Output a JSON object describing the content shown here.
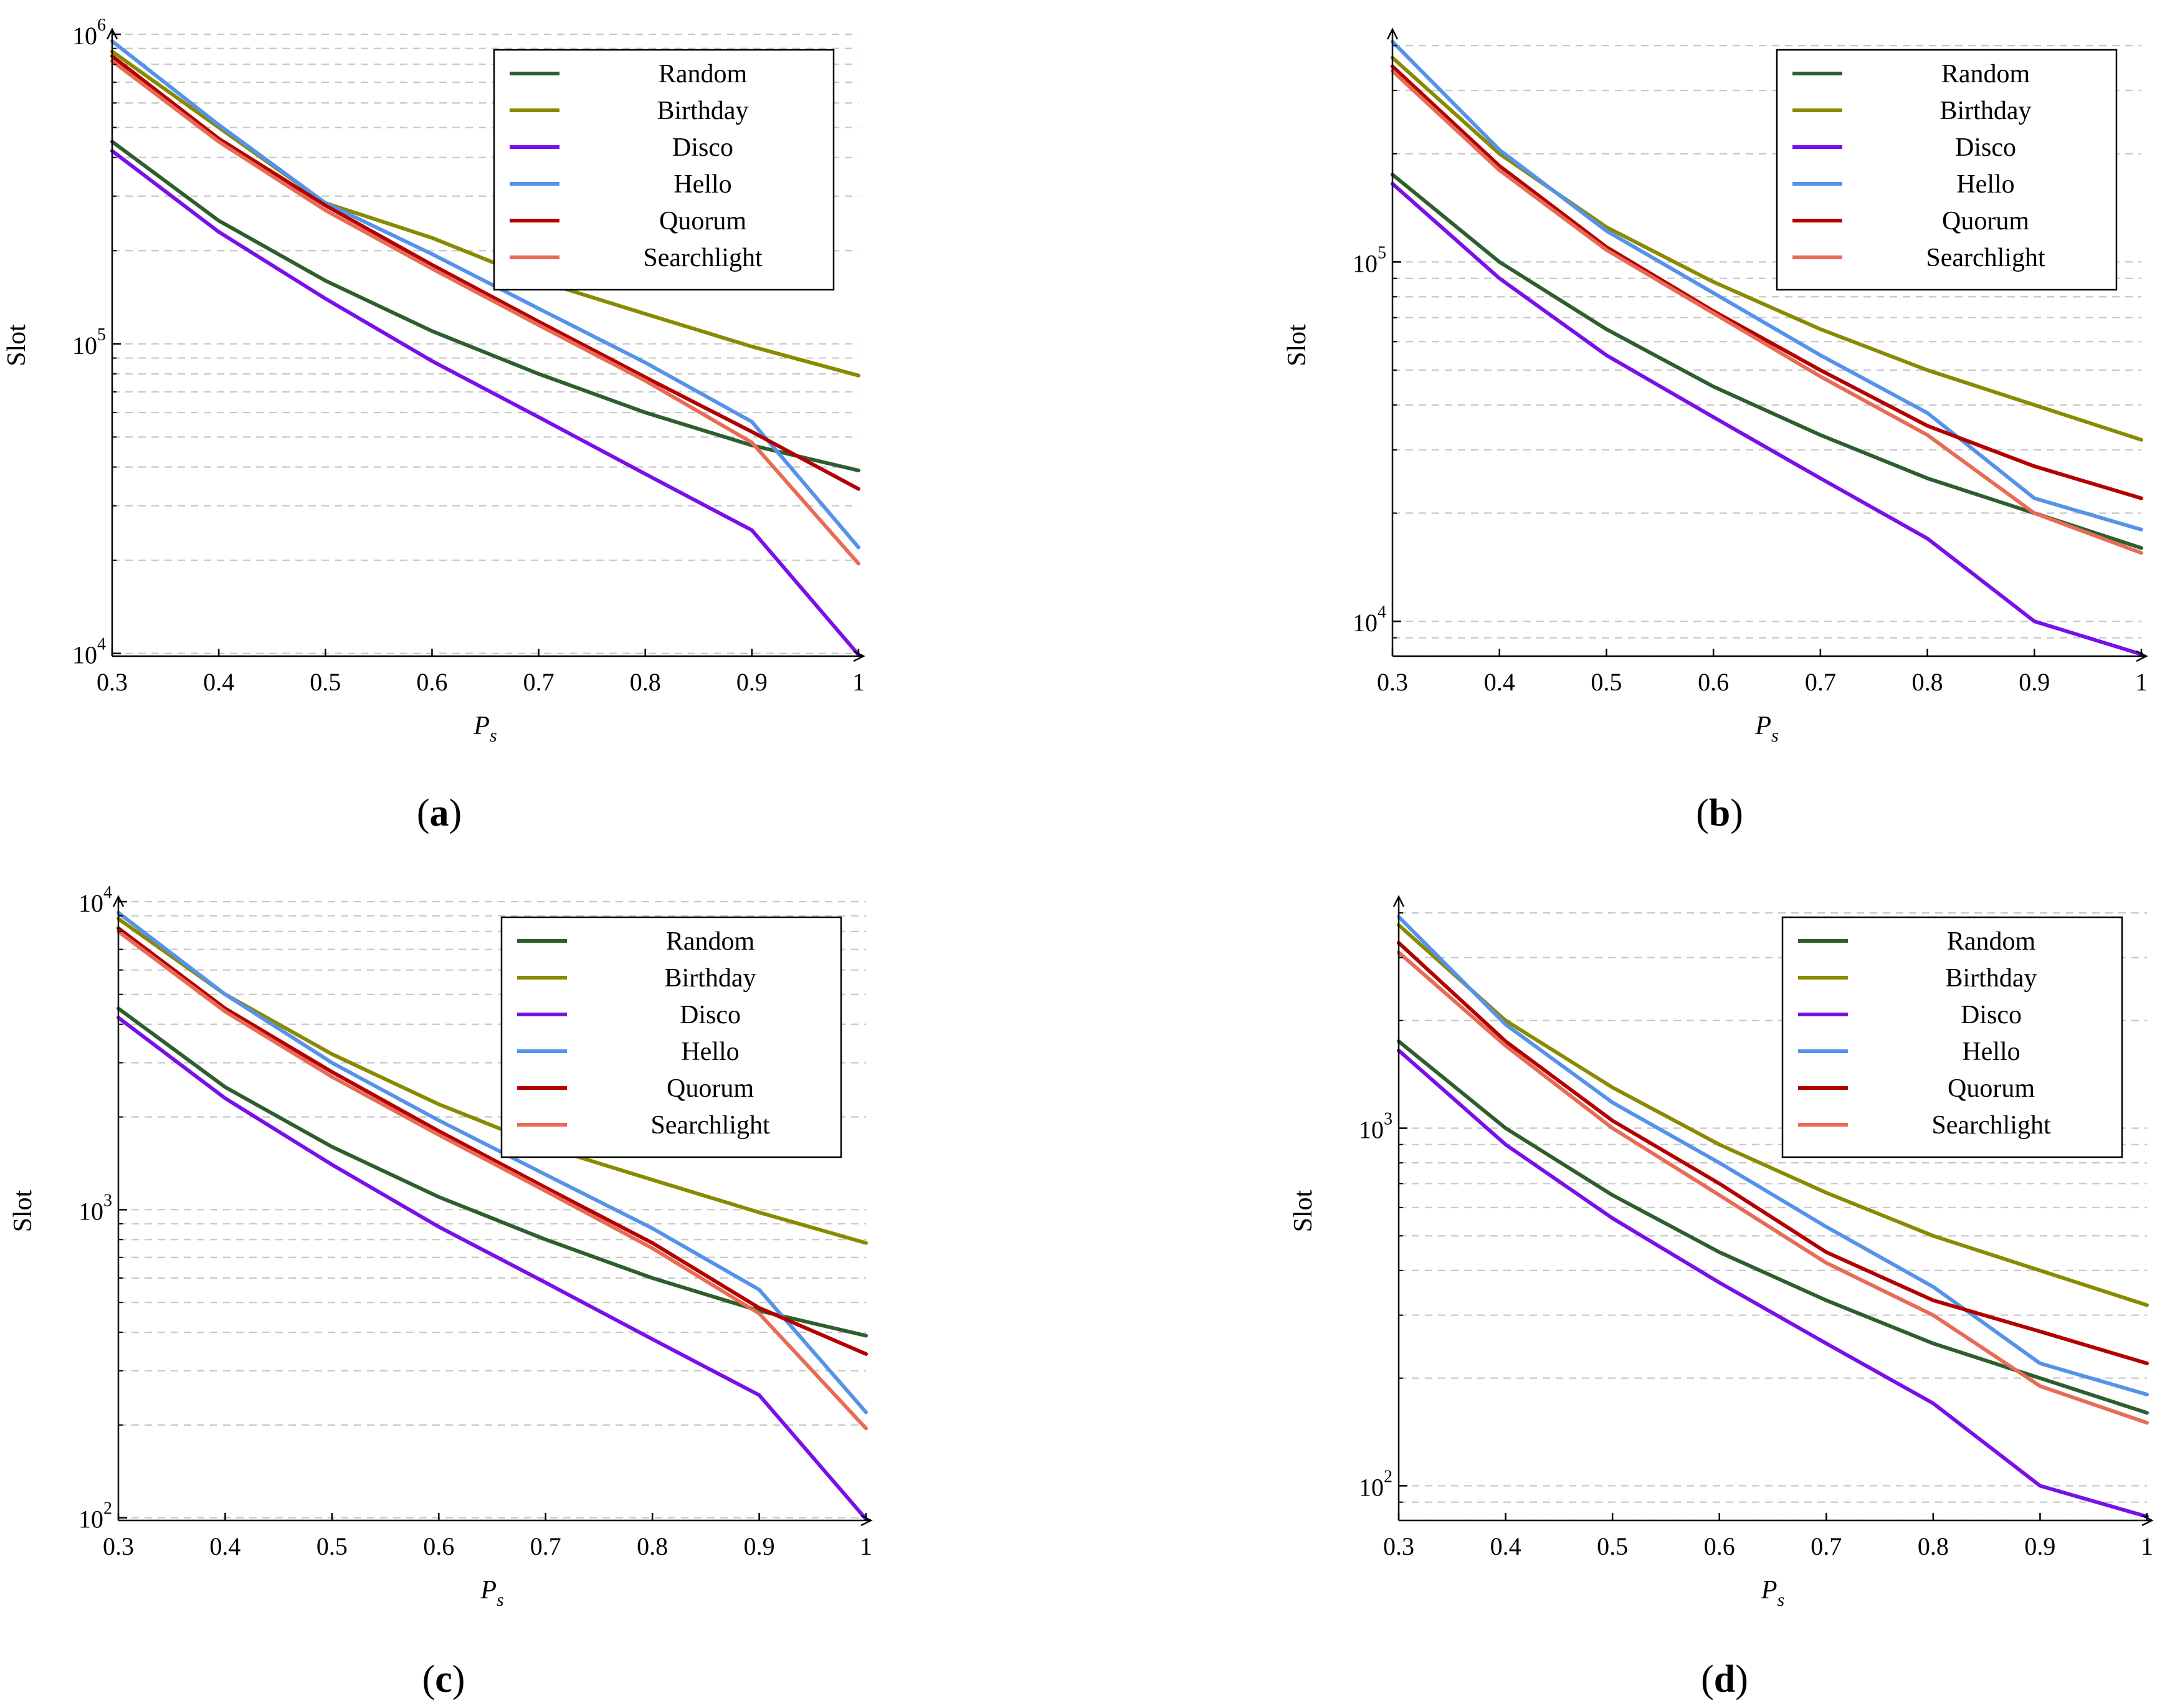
{
  "figure": {
    "panels": [
      {
        "caption": "(a)",
        "caption_letter": "a"
      },
      {
        "caption": "(b)",
        "caption_letter": "b"
      },
      {
        "caption": "(c)",
        "caption_letter": "c"
      },
      {
        "caption": "(d)",
        "caption_letter": "d"
      }
    ]
  },
  "colors": {
    "Random": "#2e5e2e",
    "Birthday": "#8a8a00",
    "Disco": "#7a10e8",
    "Hello": "#5592ea",
    "Quorum": "#b30000",
    "Searchlight": "#e86b55",
    "grid": "#c8c8c8",
    "axis": "#000000"
  },
  "chart_data": [
    {
      "type": "line",
      "panel": "a",
      "xlabel": "P",
      "xlabel_sub": "s",
      "ylabel": "Slot",
      "yscale": "log",
      "xlim": [
        0.3,
        1.0
      ],
      "ylim": [
        9800,
        1000000
      ],
      "x": [
        0.3,
        0.4,
        0.5,
        0.6,
        0.7,
        0.8,
        0.9,
        1.0
      ],
      "xtick_labels": [
        "0.3",
        "0.4",
        "0.5",
        "0.6",
        "0.7",
        "0.8",
        "0.9",
        "1"
      ],
      "ytick_major": [
        {
          "base": "10",
          "exp": "4",
          "value": 10000
        },
        {
          "base": "10",
          "exp": "5",
          "value": 100000
        },
        {
          "base": "10",
          "exp": "6",
          "value": 1000000
        }
      ],
      "legend_position": "top-right",
      "series": [
        {
          "name": "Random",
          "values": [
            450000,
            250000,
            160000,
            110000,
            80000,
            60000,
            47000,
            39000
          ]
        },
        {
          "name": "Birthday",
          "values": [
            880000,
            500000,
            285000,
            220000,
            160000,
            125000,
            98000,
            79000
          ]
        },
        {
          "name": "Disco",
          "values": [
            420000,
            230000,
            140000,
            88000,
            58000,
            38000,
            25000,
            9900
          ]
        },
        {
          "name": "Hello",
          "values": [
            950000,
            510000,
            285000,
            195000,
            130000,
            87000,
            56000,
            22000
          ]
        },
        {
          "name": "Quorum",
          "values": [
            850000,
            460000,
            280000,
            180000,
            118000,
            78000,
            52000,
            34000
          ]
        },
        {
          "name": "Searchlight",
          "values": [
            820000,
            450000,
            270000,
            175000,
            115000,
            76000,
            48000,
            19500
          ]
        }
      ]
    },
    {
      "type": "line",
      "panel": "b",
      "xlabel": "P",
      "xlabel_sub": "s",
      "ylabel": "Slot",
      "yscale": "log",
      "xlim": [
        0.3,
        1.0
      ],
      "ylim": [
        8000,
        430000
      ],
      "x": [
        0.3,
        0.4,
        0.5,
        0.6,
        0.7,
        0.8,
        0.9,
        1.0
      ],
      "xtick_labels": [
        "0.3",
        "0.4",
        "0.5",
        "0.6",
        "0.7",
        "0.8",
        "0.9",
        "1"
      ],
      "ytick_major": [
        {
          "base": "10",
          "exp": "4",
          "value": 10000
        },
        {
          "base": "10",
          "exp": "5",
          "value": 100000
        }
      ],
      "legend_position": "top-right",
      "series": [
        {
          "name": "Random",
          "values": [
            175000,
            100000,
            65000,
            45000,
            33000,
            25000,
            20000,
            16000
          ]
        },
        {
          "name": "Birthday",
          "values": [
            370000,
            200000,
            125000,
            88000,
            65000,
            50000,
            40000,
            32000
          ]
        },
        {
          "name": "Disco",
          "values": [
            165000,
            90000,
            55000,
            37000,
            25000,
            17000,
            10000,
            8100
          ]
        },
        {
          "name": "Hello",
          "values": [
            410000,
            205000,
            122000,
            82000,
            55000,
            38000,
            22000,
            18000
          ]
        },
        {
          "name": "Quorum",
          "values": [
            350000,
            185000,
            110000,
            73000,
            50000,
            35000,
            27000,
            22000
          ]
        },
        {
          "name": "Searchlight",
          "values": [
            340000,
            180000,
            108000,
            72000,
            48000,
            33000,
            20000,
            15500
          ]
        }
      ]
    },
    {
      "type": "line",
      "panel": "c",
      "xlabel": "P",
      "xlabel_sub": "s",
      "ylabel": "Slot",
      "yscale": "log",
      "xlim": [
        0.3,
        1.0
      ],
      "ylim": [
        98,
        10000
      ],
      "x": [
        0.3,
        0.4,
        0.5,
        0.6,
        0.7,
        0.8,
        0.9,
        1.0
      ],
      "xtick_labels": [
        "0.3",
        "0.4",
        "0.5",
        "0.6",
        "0.7",
        "0.8",
        "0.9",
        "1"
      ],
      "ytick_major": [
        {
          "base": "10",
          "exp": "2",
          "value": 100
        },
        {
          "base": "10",
          "exp": "3",
          "value": 1000
        },
        {
          "base": "10",
          "exp": "4",
          "value": 10000
        }
      ],
      "legend_position": "top-right",
      "series": [
        {
          "name": "Random",
          "values": [
            4500,
            2500,
            1600,
            1100,
            800,
            600,
            470,
            390
          ]
        },
        {
          "name": "Birthday",
          "values": [
            8800,
            5000,
            3200,
            2200,
            1600,
            1250,
            980,
            780
          ]
        },
        {
          "name": "Disco",
          "values": [
            4200,
            2300,
            1400,
            880,
            580,
            380,
            250,
            99
          ]
        },
        {
          "name": "Hello",
          "values": [
            9200,
            5000,
            3000,
            1950,
            1300,
            870,
            550,
            220
          ]
        },
        {
          "name": "Quorum",
          "values": [
            8200,
            4500,
            2800,
            1800,
            1180,
            780,
            480,
            340
          ]
        },
        {
          "name": "Searchlight",
          "values": [
            8000,
            4400,
            2700,
            1750,
            1150,
            750,
            460,
            195
          ]
        }
      ]
    },
    {
      "type": "line",
      "panel": "d",
      "xlabel": "P",
      "xlabel_sub": "s",
      "ylabel": "Slot",
      "yscale": "log",
      "xlim": [
        0.3,
        1.0
      ],
      "ylim": [
        80,
        4300
      ],
      "x": [
        0.3,
        0.4,
        0.5,
        0.6,
        0.7,
        0.8,
        0.9,
        1.0
      ],
      "xtick_labels": [
        "0.3",
        "0.4",
        "0.5",
        "0.6",
        "0.7",
        "0.8",
        "0.9",
        "1"
      ],
      "ytick_major": [
        {
          "base": "10",
          "exp": "2",
          "value": 100
        },
        {
          "base": "10",
          "exp": "3",
          "value": 1000
        }
      ],
      "legend_position": "top-right",
      "series": [
        {
          "name": "Random",
          "values": [
            1750,
            1000,
            650,
            450,
            330,
            250,
            200,
            160
          ]
        },
        {
          "name": "Birthday",
          "values": [
            3700,
            2000,
            1300,
            900,
            660,
            500,
            400,
            320
          ]
        },
        {
          "name": "Disco",
          "values": [
            1650,
            900,
            560,
            370,
            250,
            170,
            100,
            82
          ]
        },
        {
          "name": "Hello",
          "values": [
            3900,
            1950,
            1180,
            800,
            530,
            360,
            220,
            180
          ]
        },
        {
          "name": "Quorum",
          "values": [
            3300,
            1750,
            1050,
            700,
            450,
            330,
            270,
            220
          ]
        },
        {
          "name": "Searchlight",
          "values": [
            3100,
            1700,
            1000,
            650,
            420,
            300,
            190,
            150
          ]
        }
      ]
    }
  ]
}
